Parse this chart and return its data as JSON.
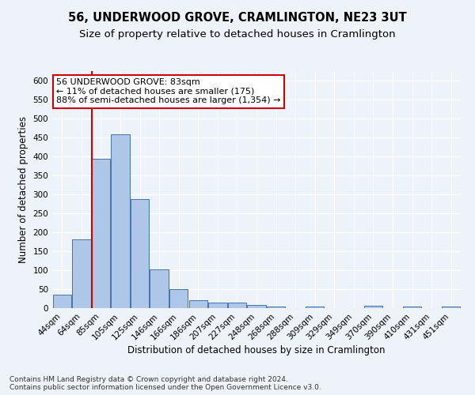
{
  "title": "56, UNDERWOOD GROVE, CRAMLINGTON, NE23 3UT",
  "subtitle": "Size of property relative to detached houses in Cramlington",
  "xlabel": "Distribution of detached houses by size in Cramlington",
  "ylabel": "Number of detached properties",
  "categories": [
    "44sqm",
    "64sqm",
    "85sqm",
    "105sqm",
    "125sqm",
    "146sqm",
    "166sqm",
    "186sqm",
    "207sqm",
    "227sqm",
    "248sqm",
    "268sqm",
    "288sqm",
    "309sqm",
    "329sqm",
    "349sqm",
    "370sqm",
    "390sqm",
    "410sqm",
    "431sqm",
    "451sqm"
  ],
  "values": [
    36,
    182,
    393,
    459,
    287,
    103,
    49,
    21,
    15,
    15,
    9,
    5,
    0,
    5,
    0,
    0,
    6,
    0,
    5,
    0,
    5
  ],
  "bar_color": "#aec6e8",
  "bar_edge_color": "#4472a8",
  "property_line_index": 2,
  "annotation_text": "56 UNDERWOOD GROVE: 83sqm\n← 11% of detached houses are smaller (175)\n88% of semi-detached houses are larger (1,354) →",
  "annotation_box_color": "#ffffff",
  "annotation_box_edge_color": "#cc0000",
  "red_line_color": "#cc0000",
  "ylim": [
    0,
    625
  ],
  "yticks": [
    0,
    50,
    100,
    150,
    200,
    250,
    300,
    350,
    400,
    450,
    500,
    550,
    600
  ],
  "footer_text": "Contains HM Land Registry data © Crown copyright and database right 2024.\nContains public sector information licensed under the Open Government Licence v3.0.",
  "background_color": "#eef2f9",
  "grid_color": "#ffffff",
  "title_fontsize": 10.5,
  "subtitle_fontsize": 9.5,
  "axis_label_fontsize": 8.5,
  "tick_fontsize": 7.5,
  "annotation_fontsize": 8,
  "footer_fontsize": 6.5
}
